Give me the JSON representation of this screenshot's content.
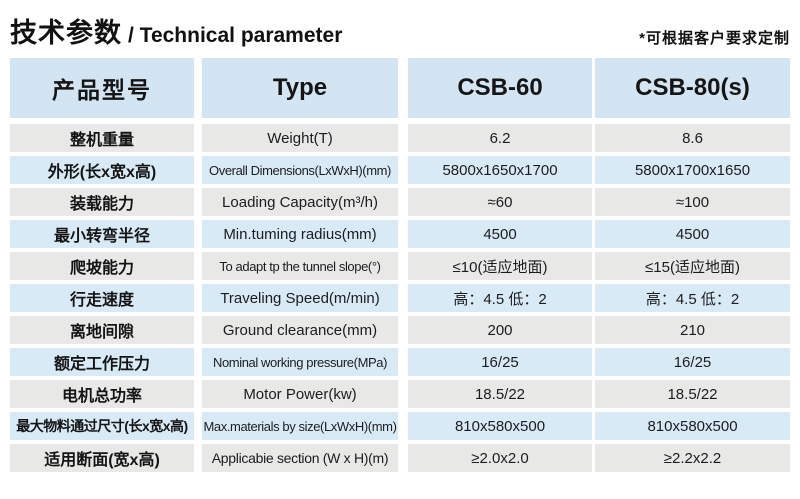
{
  "page": {
    "title_zh": "技术参数",
    "title_en": "/ Technical parameter",
    "note": "*可根据客户要求定制"
  },
  "colors": {
    "header_blue": "#d3e5f3",
    "row_blue": "#d9eaf7",
    "row_gray": "#e8e8e7",
    "text": "#1d1d1f"
  },
  "table": {
    "header": {
      "col_zh": "产品型号",
      "col_en": "Type",
      "col_csb60": "CSB-60",
      "col_csb80": "CSB-80(s)"
    },
    "rows": [
      {
        "zh": "整机重量",
        "en": "Weight(T)",
        "csb60": "6.2",
        "csb80": "8.6"
      },
      {
        "zh": "外形(长x宽x高)",
        "en": "Overall Dimensions(LxWxH)(mm)",
        "csb60": "5800x1650x1700",
        "csb80": "5800x1700x1650"
      },
      {
        "zh": "装载能力",
        "en": "Loading Capacity(m³/h)",
        "csb60": "≈60",
        "csb80": "≈100"
      },
      {
        "zh": "最小转弯半径",
        "en": "Min.tuming radius(mm)",
        "csb60": "4500",
        "csb80": "4500"
      },
      {
        "zh": "爬坡能力",
        "en": "To adapt tp the tunnel slope(°)",
        "csb60": "≤10(适应地面)",
        "csb80": "≤15(适应地面)"
      },
      {
        "zh": "行走速度",
        "en": "Traveling Speed(m/min)",
        "csb60": "高：4.5 低：2",
        "csb80": "高：4.5 低：2"
      },
      {
        "zh": "离地间隙",
        "en": "Ground clearance(mm)",
        "csb60": "200",
        "csb80": "210"
      },
      {
        "zh": "额定工作压力",
        "en": "Nominal working pressure(MPa)",
        "csb60": "16/25",
        "csb80": "16/25"
      },
      {
        "zh": "电机总功率",
        "en": "Motor Power(kw)",
        "csb60": "18.5/22",
        "csb80": "18.5/22"
      },
      {
        "zh": "最大物料通过尺寸(长x宽x高)",
        "en": "Max.materials by size(LxWxH)(mm)",
        "csb60": "810x580x500",
        "csb80": "810x580x500"
      },
      {
        "zh": "适用断面(宽x高)",
        "en": "Applicabie section (W x H)(m)",
        "csb60": "≥2.0x2.0",
        "csb80": "≥2.2x2.2"
      }
    ]
  }
}
